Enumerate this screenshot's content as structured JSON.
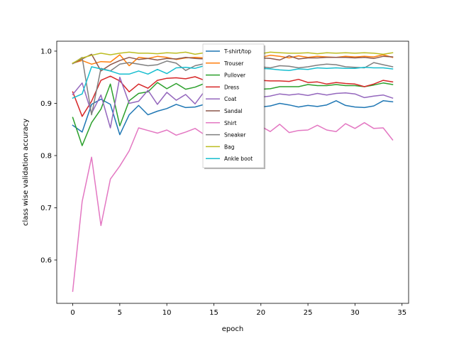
{
  "chart_data": {
    "type": "line",
    "title": "",
    "xlabel": "epoch",
    "ylabel": "class wise validation accuracy",
    "xlim": [
      -1.7,
      35.7
    ],
    "ylim": [
      0.517,
      1.019
    ],
    "xticks": [
      0,
      5,
      10,
      15,
      20,
      25,
      30,
      35
    ],
    "yticks": [
      0.6,
      0.7,
      0.8,
      0.9,
      1.0
    ],
    "ytick_labels": [
      "0.6",
      "0.7",
      "0.8",
      "0.9",
      "1.0"
    ],
    "grid": false,
    "legend_position": "upper center",
    "x": [
      0,
      1,
      2,
      3,
      4,
      5,
      6,
      7,
      8,
      9,
      10,
      11,
      12,
      13,
      14,
      15,
      16,
      17,
      18,
      19,
      20,
      21,
      22,
      23,
      24,
      25,
      26,
      27,
      28,
      29,
      30,
      31,
      32,
      33,
      34
    ],
    "series": [
      {
        "name": "T-shirt/top",
        "color": "#1f77b4",
        "values": [
          0.858,
          0.845,
          0.898,
          0.908,
          0.898,
          0.84,
          0.878,
          0.896,
          0.878,
          0.885,
          0.89,
          0.898,
          0.892,
          0.893,
          0.898,
          0.893,
          0.896,
          0.898,
          0.9,
          0.896,
          0.893,
          0.895,
          0.9,
          0.897,
          0.893,
          0.896,
          0.894,
          0.897,
          0.905,
          0.896,
          0.893,
          0.892,
          0.895,
          0.905,
          0.903
        ]
      },
      {
        "name": "Trouser",
        "color": "#ff7f0e",
        "values": [
          0.977,
          0.982,
          0.975,
          0.98,
          0.979,
          0.993,
          0.972,
          0.988,
          0.986,
          0.99,
          0.988,
          0.984,
          0.987,
          0.988,
          0.987,
          0.99,
          0.988,
          0.99,
          0.988,
          0.991,
          0.988,
          0.992,
          0.99,
          0.987,
          0.991,
          0.988,
          0.99,
          0.989,
          0.988,
          0.99,
          0.989,
          0.99,
          0.989,
          0.993,
          0.988
        ]
      },
      {
        "name": "Pullover",
        "color": "#2ca02c",
        "values": [
          0.873,
          0.819,
          0.863,
          0.889,
          0.937,
          0.857,
          0.905,
          0.919,
          0.922,
          0.94,
          0.928,
          0.938,
          0.927,
          0.931,
          0.938,
          0.933,
          0.929,
          0.931,
          0.933,
          0.93,
          0.927,
          0.928,
          0.932,
          0.932,
          0.932,
          0.936,
          0.934,
          0.934,
          0.936,
          0.934,
          0.934,
          0.932,
          0.935,
          0.939,
          0.936
        ]
      },
      {
        "name": "Dress",
        "color": "#d62728",
        "values": [
          0.922,
          0.875,
          0.904,
          0.944,
          0.952,
          0.943,
          0.922,
          0.937,
          0.929,
          0.944,
          0.948,
          0.949,
          0.947,
          0.951,
          0.944,
          0.946,
          0.944,
          0.947,
          0.947,
          0.947,
          0.944,
          0.943,
          0.943,
          0.942,
          0.946,
          0.94,
          0.941,
          0.937,
          0.94,
          0.938,
          0.937,
          0.932,
          0.937,
          0.944,
          0.941
        ]
      },
      {
        "name": "Coat",
        "color": "#9467bd",
        "values": [
          0.917,
          0.939,
          0.881,
          0.916,
          0.853,
          0.95,
          0.9,
          0.904,
          0.925,
          0.898,
          0.921,
          0.906,
          0.917,
          0.899,
          0.923,
          0.91,
          0.912,
          0.918,
          0.914,
          0.917,
          0.912,
          0.914,
          0.918,
          0.916,
          0.918,
          0.915,
          0.919,
          0.916,
          0.919,
          0.92,
          0.918,
          0.911,
          0.914,
          0.916,
          0.91
        ]
      },
      {
        "name": "Sandal",
        "color": "#8c564b",
        "values": [
          0.976,
          0.985,
          0.994,
          0.962,
          0.974,
          0.982,
          0.988,
          0.984,
          0.986,
          0.983,
          0.986,
          0.985,
          0.988,
          0.986,
          0.985,
          0.987,
          0.986,
          0.99,
          0.985,
          0.989,
          0.987,
          0.986,
          0.983,
          0.991,
          0.985,
          0.987,
          0.987,
          0.988,
          0.988,
          0.988,
          0.987,
          0.988,
          0.986,
          0.99,
          0.989
        ]
      },
      {
        "name": "Shirt",
        "color": "#e377c2",
        "values": [
          0.54,
          0.712,
          0.797,
          0.666,
          0.755,
          0.78,
          0.809,
          0.853,
          0.848,
          0.843,
          0.849,
          0.839,
          0.845,
          0.852,
          0.84,
          0.848,
          0.855,
          0.848,
          0.858,
          0.849,
          0.856,
          0.846,
          0.86,
          0.844,
          0.848,
          0.849,
          0.858,
          0.849,
          0.846,
          0.861,
          0.852,
          0.863,
          0.852,
          0.853,
          0.83
        ]
      },
      {
        "name": "Sneaker",
        "color": "#7f7f7f",
        "values": [
          0.976,
          0.988,
          0.878,
          0.967,
          0.962,
          0.975,
          0.978,
          0.975,
          0.972,
          0.974,
          0.981,
          0.977,
          0.963,
          0.972,
          0.976,
          0.971,
          0.973,
          0.969,
          0.971,
          0.974,
          0.97,
          0.968,
          0.972,
          0.971,
          0.968,
          0.97,
          0.973,
          0.975,
          0.974,
          0.97,
          0.969,
          0.968,
          0.978,
          0.974,
          0.97
        ]
      },
      {
        "name": "Bag",
        "color": "#bcbd22",
        "values": [
          0.977,
          0.987,
          0.992,
          0.996,
          0.993,
          0.996,
          0.998,
          0.996,
          0.996,
          0.995,
          0.997,
          0.996,
          0.998,
          0.994,
          0.997,
          0.995,
          0.997,
          0.996,
          0.996,
          0.997,
          0.995,
          0.998,
          0.997,
          0.996,
          0.996,
          0.997,
          0.995,
          0.997,
          0.996,
          0.997,
          0.996,
          0.997,
          0.996,
          0.994,
          0.997
        ]
      },
      {
        "name": "Ankle boot",
        "color": "#17becf",
        "values": [
          0.91,
          0.918,
          0.97,
          0.966,
          0.962,
          0.956,
          0.956,
          0.962,
          0.956,
          0.965,
          0.957,
          0.968,
          0.969,
          0.967,
          0.972,
          0.968,
          0.97,
          0.972,
          0.968,
          0.969,
          0.967,
          0.966,
          0.964,
          0.963,
          0.966,
          0.965,
          0.968,
          0.967,
          0.968,
          0.967,
          0.967,
          0.969,
          0.968,
          0.968,
          0.966
        ]
      }
    ]
  }
}
